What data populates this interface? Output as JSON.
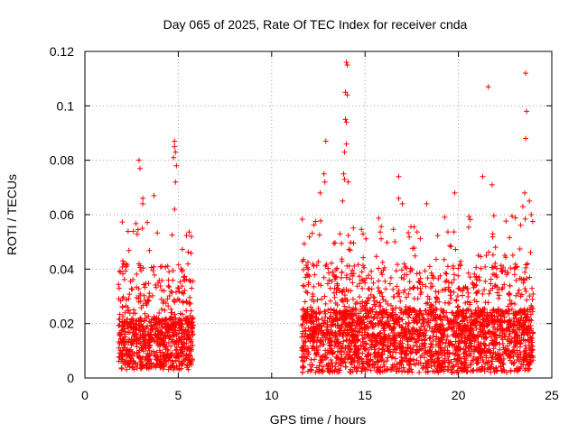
{
  "chart_data": {
    "type": "scatter",
    "title": "Day 065 of 2025, Rate Of TEC Index for receiver cnda",
    "xlabel": "GPS time / hours",
    "ylabel": "ROTI / TECUs",
    "xlim": [
      0,
      25
    ],
    "ylim": [
      0,
      0.12
    ],
    "xticks": [
      "0",
      "5",
      "10",
      "15",
      "20",
      "25"
    ],
    "yticks": [
      "0",
      "0.02",
      "0.04",
      "0.06",
      "0.08",
      "0.1",
      "0.12"
    ],
    "xtick_values": [
      0,
      5,
      10,
      15,
      20,
      25
    ],
    "ytick_values": [
      0,
      0.02,
      0.04,
      0.06,
      0.08,
      0.1,
      0.12
    ],
    "grid": true,
    "marker": "+",
    "color": "#ff0000",
    "series": [
      {
        "name": "ROTI",
        "segments": [
          {
            "x_start": 1.8,
            "x_end": 5.8,
            "y_min": 0.003,
            "y_median": 0.013,
            "y_max": 0.06
          },
          {
            "x_start": 11.6,
            "x_end": 24.0,
            "y_min": 0.002,
            "y_median": 0.015,
            "y_max": 0.06
          }
        ],
        "notable_points": [
          {
            "x": 2.9,
            "y": 0.08
          },
          {
            "x": 2.95,
            "y": 0.077
          },
          {
            "x": 3.1,
            "y": 0.066
          },
          {
            "x": 3.1,
            "y": 0.064
          },
          {
            "x": 3.7,
            "y": 0.067
          },
          {
            "x": 4.8,
            "y": 0.087
          },
          {
            "x": 4.8,
            "y": 0.085
          },
          {
            "x": 4.85,
            "y": 0.083
          },
          {
            "x": 4.75,
            "y": 0.081
          },
          {
            "x": 4.9,
            "y": 0.078
          },
          {
            "x": 4.85,
            "y": 0.072
          },
          {
            "x": 4.8,
            "y": 0.062
          },
          {
            "x": 5.7,
            "y": 0.052
          },
          {
            "x": 12.9,
            "y": 0.087
          },
          {
            "x": 12.8,
            "y": 0.075
          },
          {
            "x": 12.85,
            "y": 0.072
          },
          {
            "x": 12.6,
            "y": 0.068
          },
          {
            "x": 14.0,
            "y": 0.116
          },
          {
            "x": 14.05,
            "y": 0.115
          },
          {
            "x": 13.95,
            "y": 0.105
          },
          {
            "x": 14.05,
            "y": 0.104
          },
          {
            "x": 14.0,
            "y": 0.094
          },
          {
            "x": 13.95,
            "y": 0.095
          },
          {
            "x": 14.0,
            "y": 0.086
          },
          {
            "x": 13.9,
            "y": 0.083
          },
          {
            "x": 13.85,
            "y": 0.075
          },
          {
            "x": 13.9,
            "y": 0.073
          },
          {
            "x": 14.1,
            "y": 0.072
          },
          {
            "x": 13.8,
            "y": 0.065
          },
          {
            "x": 16.8,
            "y": 0.074
          },
          {
            "x": 16.8,
            "y": 0.066
          },
          {
            "x": 17.0,
            "y": 0.064
          },
          {
            "x": 18.3,
            "y": 0.064
          },
          {
            "x": 19.8,
            "y": 0.068
          },
          {
            "x": 21.3,
            "y": 0.074
          },
          {
            "x": 21.6,
            "y": 0.107
          },
          {
            "x": 21.8,
            "y": 0.071
          },
          {
            "x": 23.6,
            "y": 0.112
          },
          {
            "x": 23.65,
            "y": 0.098
          },
          {
            "x": 23.6,
            "y": 0.088
          },
          {
            "x": 23.55,
            "y": 0.068
          },
          {
            "x": 23.8,
            "y": 0.065
          },
          {
            "x": 23.45,
            "y": 0.063
          },
          {
            "x": 23.9,
            "y": 0.06
          }
        ]
      }
    ]
  }
}
